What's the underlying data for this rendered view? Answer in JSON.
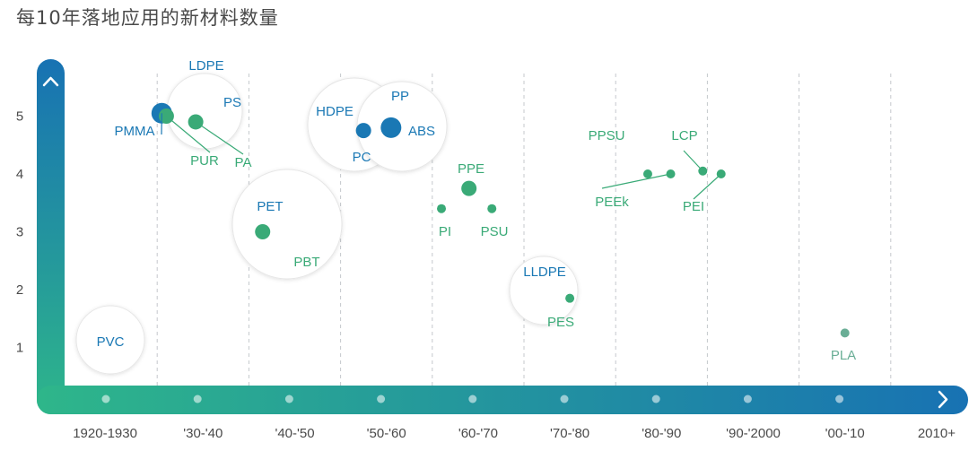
{
  "chart_data": {
    "type": "scatter",
    "title": "每10年落地应用的新材料数量",
    "xlabel": "",
    "ylabel": "",
    "categories": [
      "1920-1930",
      "'30-'40",
      "'40-'50",
      "'50-'60",
      "'60-'70",
      "'70-'80",
      "'80-'90",
      "'90-'2000",
      "'00-'10",
      "2010+"
    ],
    "y_ticks": [
      1,
      2,
      3,
      4,
      5
    ],
    "ylim": [
      0,
      5.8
    ],
    "grid": "vertical dashed lines between decades",
    "colors": {
      "blue": "#1a78b4",
      "green": "#3aaa77",
      "grey_green": "#6aae96",
      "axis_start": "#2eb68a",
      "axis_end": "#1872b3"
    },
    "points": [
      {
        "label": "PMMA",
        "x": 1.05,
        "y": 5.05,
        "color": "blue",
        "size": "large"
      },
      {
        "label": "PUR",
        "x": 1.1,
        "y": 5.0,
        "color": "green",
        "size": "medium"
      },
      {
        "label": "PA",
        "x": 1.42,
        "y": 4.9,
        "color": "green",
        "size": "medium"
      },
      {
        "label": "PBT",
        "x": 2.15,
        "y": 3.0,
        "color": "green",
        "size": "medium"
      },
      {
        "label": "PC",
        "x": 3.25,
        "y": 4.75,
        "color": "blue",
        "size": "medium"
      },
      {
        "label": "ABS",
        "x": 3.55,
        "y": 4.8,
        "color": "blue",
        "size": "large"
      },
      {
        "label": "PPE",
        "x": 4.4,
        "y": 3.75,
        "color": "green",
        "size": "medium"
      },
      {
        "label": "PI",
        "x": 4.1,
        "y": 3.4,
        "color": "green",
        "size": "small"
      },
      {
        "label": "PSU",
        "x": 4.65,
        "y": 3.4,
        "color": "green",
        "size": "small"
      },
      {
        "label": "PES",
        "x": 5.5,
        "y": 1.85,
        "color": "green",
        "size": "small"
      },
      {
        "label": "PPSU",
        "x": 6.35,
        "y": 4.0,
        "color": "green",
        "size": "small"
      },
      {
        "label": "PEEk",
        "x": 6.6,
        "y": 4.0,
        "color": "green",
        "size": "small"
      },
      {
        "label": "LCP",
        "x": 6.95,
        "y": 4.05,
        "color": "green",
        "size": "small"
      },
      {
        "label": "PEI",
        "x": 7.15,
        "y": 4.0,
        "color": "green",
        "size": "small"
      },
      {
        "label": "PLA",
        "x": 8.5,
        "y": 1.25,
        "color": "grey_green",
        "size": "small"
      }
    ],
    "bubble_labels": [
      {
        "text": "LDPE",
        "color": "blue"
      },
      {
        "text": "PS",
        "color": "blue"
      },
      {
        "text": "PET",
        "color": "blue"
      },
      {
        "text": "HDPE",
        "color": "blue"
      },
      {
        "text": "PP",
        "color": "blue"
      },
      {
        "text": "LLDPE",
        "color": "blue"
      },
      {
        "text": "PVC",
        "color": "blue"
      }
    ]
  }
}
